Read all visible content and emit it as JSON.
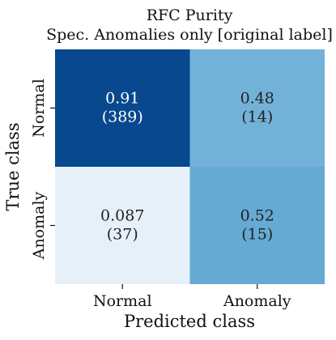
{
  "chart_data": {
    "type": "heatmap",
    "title": "RFC Purity",
    "subtitle": "Spec. Anomalies only [original label]",
    "xlabel": "Predicted class",
    "ylabel": "True class",
    "x_categories": [
      "Normal",
      "Anomaly"
    ],
    "y_categories": [
      "Normal",
      "Anomaly"
    ],
    "values": [
      [
        0.91,
        0.48
      ],
      [
        0.087,
        0.52
      ]
    ],
    "counts": [
      [
        389,
        14
      ],
      [
        37,
        15
      ]
    ],
    "cell_labels": [
      [
        "0.91",
        "0.48"
      ],
      [
        "0.087",
        "0.52"
      ]
    ],
    "count_labels": [
      [
        "(389)",
        "(14)"
      ],
      [
        "(37)",
        "(15)"
      ]
    ],
    "colormap": "Blues",
    "value_range": [
      0,
      1
    ],
    "colorbar": false,
    "grid": false
  }
}
